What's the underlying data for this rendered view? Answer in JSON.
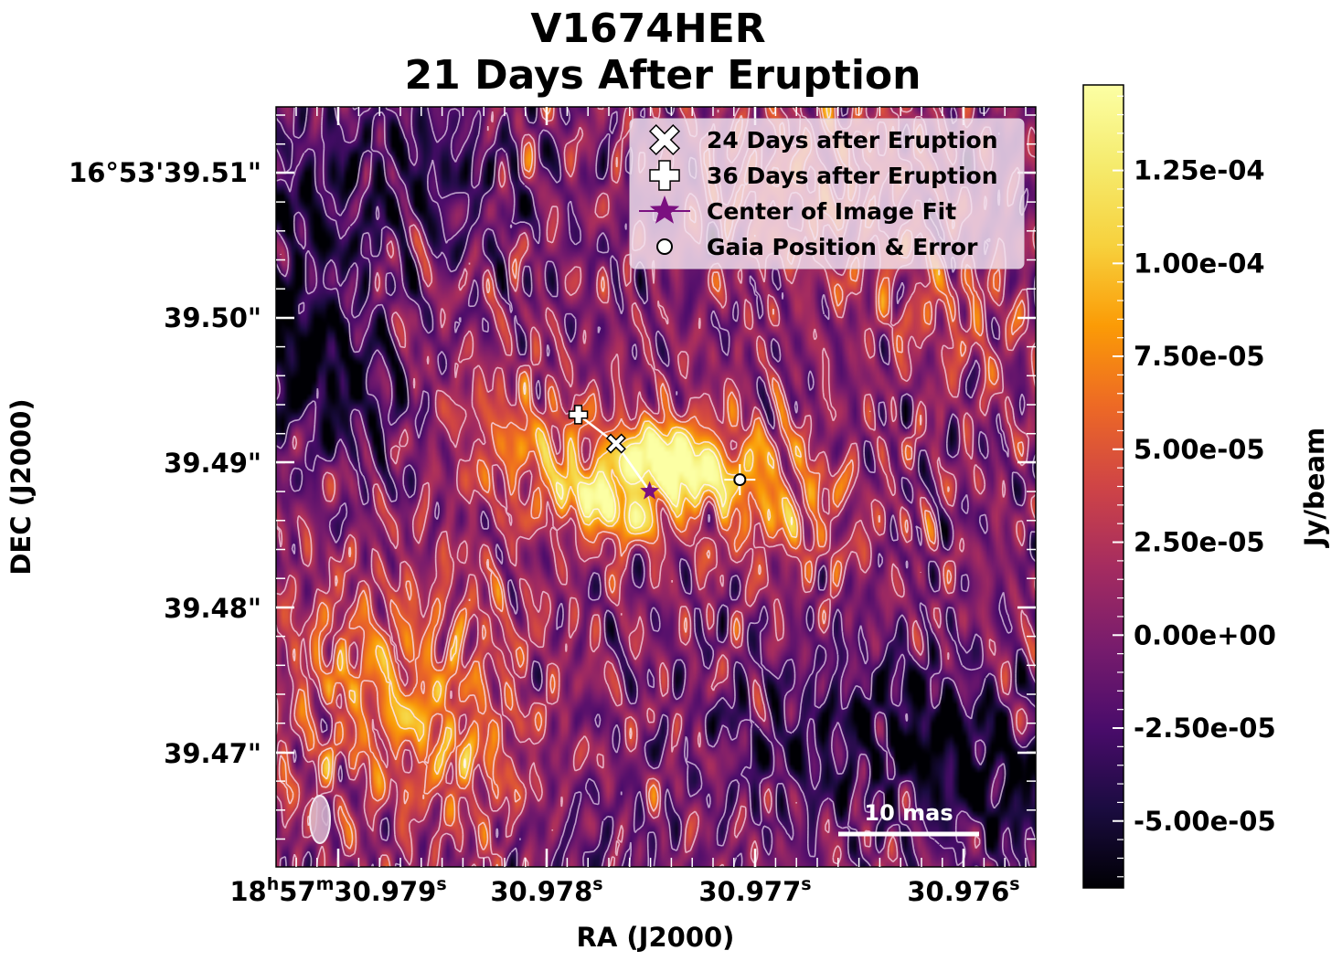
{
  "chart_data": {
    "type": "heatmap",
    "title": [
      "V1674HER",
      "21 Days After Eruption"
    ],
    "xlabel": "RA (J2000)",
    "ylabel": "DEC (J2000)",
    "xticks": [
      {
        "label": "18h57m30.979s",
        "parts": [
          "18",
          "h",
          "57",
          "m",
          "30.979",
          "s"
        ]
      },
      {
        "label": "30.978s",
        "parts": [
          "",
          "",
          "",
          "",
          "30.978",
          "s"
        ]
      },
      {
        "label": "30.977s",
        "parts": [
          "",
          "",
          "",
          "",
          "30.977",
          "s"
        ]
      },
      {
        "label": "30.976s",
        "parts": [
          "",
          "",
          "",
          "",
          "30.976",
          "s"
        ]
      }
    ],
    "yticks": [
      "16°53'39.51\"",
      "39.50\"",
      "39.49\"",
      "39.48\"",
      "39.47\""
    ],
    "colorbar": {
      "label": "Jy/beam",
      "colormap": "inferno",
      "range": [
        -6.8e-05,
        0.000148
      ],
      "ticks": [
        {
          "value": 0.000125,
          "label": "1.25e-04"
        },
        {
          "value": 0.0001,
          "label": "1.00e-04"
        },
        {
          "value": 7.5e-05,
          "label": "7.50e-05"
        },
        {
          "value": 5e-05,
          "label": "5.00e-05"
        },
        {
          "value": 2.5e-05,
          "label": "2.50e-05"
        },
        {
          "value": 0.0,
          "label": "0.00e+00"
        },
        {
          "value": -2.5e-05,
          "label": "-2.50e-05"
        },
        {
          "value": -5e-05,
          "label": "-5.00e-05"
        }
      ]
    },
    "legend": {
      "placement": "top-right",
      "entries": [
        {
          "label": "24 Days after Eruption",
          "marker": "x-cross",
          "color": "#ffffff"
        },
        {
          "label": "36 Days after Eruption",
          "marker": "plus",
          "color": "#ffffff"
        },
        {
          "label": "Center of Image Fit",
          "marker": "star",
          "color": "#7b1080"
        },
        {
          "label": "Gaia Position & Error",
          "marker": "circle",
          "color": "#ffffff"
        }
      ]
    },
    "scalebar": {
      "label": "10 mas"
    },
    "markers": {
      "day24": {
        "ra_s": 30.97767,
        "dec_arcsec": 39.4915
      },
      "day36": {
        "ra_s": 30.97785,
        "dec_arcsec": 39.4935
      },
      "fit_center": {
        "ra_s": 30.97751,
        "dec_arcsec": 39.4882
      },
      "gaia": {
        "ra_s": 30.97708,
        "dec_arcsec": 39.489
      }
    },
    "axis_ranges": {
      "ra_s": [
        30.97929,
        30.97567
      ],
      "dec_arcsec": [
        39.4622,
        39.5148
      ]
    },
    "sources": [
      {
        "ra_s": 30.9775,
        "dec_arcsec": 39.4895,
        "peak": 0.000145
      },
      {
        "ra_s": 30.97772,
        "dec_arcsec": 39.487,
        "peak": 0.00013
      },
      {
        "ra_s": 30.97735,
        "dec_arcsec": 39.491,
        "peak": 0.000105
      },
      {
        "ra_s": 30.977,
        "dec_arcsec": 39.4885,
        "peak": 7.5e-05
      },
      {
        "ra_s": 30.97805,
        "dec_arcsec": 39.491,
        "peak": 6.5e-05
      },
      {
        "ra_s": 30.9789,
        "dec_arcsec": 39.4765,
        "peak": 4.5e-05
      },
      {
        "ra_s": 30.9785,
        "dec_arcsec": 39.471,
        "peak": 5.5e-05
      },
      {
        "ra_s": 30.9784,
        "dec_arcsec": 39.4795,
        "peak": 3e-05
      },
      {
        "ra_s": 30.9769,
        "dec_arcsec": 39.5085,
        "peak": 4e-05
      },
      {
        "ra_s": 30.9761,
        "dec_arcsec": 39.501,
        "peak": 3.5e-05
      },
      {
        "ra_s": 30.9765,
        "dec_arcsec": 39.513,
        "peak": 3e-05
      },
      {
        "ra_s": 30.9782,
        "dec_arcsec": 39.465,
        "peak": 3.5e-05
      },
      {
        "ra_s": 30.9792,
        "dec_arcsec": 39.469,
        "peak": 2.5e-05
      },
      {
        "ra_s": 30.978,
        "dec_arcsec": 39.464,
        "peak": -4e-05
      },
      {
        "ra_s": 30.9792,
        "dec_arcsec": 39.508,
        "peak": -4.5e-05
      },
      {
        "ra_s": 30.9786,
        "dec_arcsec": 39.511,
        "peak": -4e-05
      },
      {
        "ra_s": 30.9762,
        "dec_arcsec": 39.472,
        "peak": -5e-05
      },
      {
        "ra_s": 30.9768,
        "dec_arcsec": 39.47,
        "peak": -3.5e-05
      },
      {
        "ra_s": 30.9758,
        "dec_arcsec": 39.467,
        "peak": -4.5e-05
      },
      {
        "ra_s": 30.979,
        "dec_arcsec": 39.495,
        "peak": -3.5e-05
      },
      {
        "ra_s": 30.9793,
        "dec_arcsec": 39.499,
        "peak": -5.5e-05
      }
    ]
  }
}
